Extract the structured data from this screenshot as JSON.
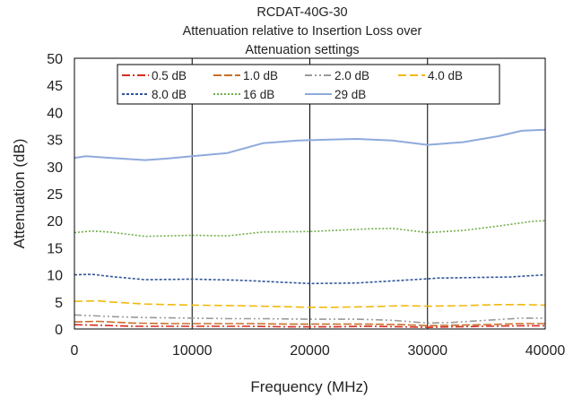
{
  "chart_data": {
    "type": "line",
    "title_lines": [
      "RCDAT-40G-30",
      "Attenuation relative to Insertion Loss over",
      "Attenuation settings"
    ],
    "xlabel": "Frequency (MHz)",
    "ylabel": "Attenuation (dB)",
    "xlim": [
      0,
      40000
    ],
    "ylim": [
      0,
      50
    ],
    "x_ticks": [
      0,
      10000,
      20000,
      30000,
      40000
    ],
    "y_ticks": [
      0,
      5,
      10,
      15,
      20,
      25,
      30,
      35,
      40,
      45,
      50
    ],
    "grid": "vertical",
    "legend_position": "top",
    "series": [
      {
        "name": "0.5 dB",
        "color": "#d62d20",
        "dash": "9,3,2,3",
        "points": [
          [
            0,
            0.8
          ],
          [
            2000,
            0.7
          ],
          [
            5000,
            0.5
          ],
          [
            8000,
            0.5
          ],
          [
            10000,
            0.5
          ],
          [
            12000,
            0.5
          ],
          [
            15000,
            0.5
          ],
          [
            18000,
            0.4
          ],
          [
            20000,
            0.4
          ],
          [
            22000,
            0.4
          ],
          [
            25000,
            0.5
          ],
          [
            28000,
            0.4
          ],
          [
            30000,
            0.3
          ],
          [
            32000,
            0.4
          ],
          [
            35000,
            0.5
          ],
          [
            38000,
            0.6
          ],
          [
            40000,
            0.6
          ]
        ]
      },
      {
        "name": "1.0 dB",
        "color": "#c8702a",
        "dash": "9,3",
        "points": [
          [
            0,
            1.3
          ],
          [
            2000,
            1.4
          ],
          [
            5000,
            1.1
          ],
          [
            8000,
            1.0
          ],
          [
            10000,
            1.0
          ],
          [
            12000,
            1.0
          ],
          [
            15000,
            1.0
          ],
          [
            18000,
            0.9
          ],
          [
            20000,
            0.9
          ],
          [
            22000,
            0.9
          ],
          [
            25000,
            0.9
          ],
          [
            28000,
            0.8
          ],
          [
            30000,
            0.6
          ],
          [
            32000,
            0.7
          ],
          [
            35000,
            0.8
          ],
          [
            38000,
            1.0
          ],
          [
            40000,
            1.0
          ]
        ]
      },
      {
        "name": "2.0 dB",
        "color": "#9a9a9a",
        "dash": "8,3,2,3,2,3",
        "points": [
          [
            0,
            2.6
          ],
          [
            1000,
            2.5
          ],
          [
            3000,
            2.3
          ],
          [
            6000,
            2.1
          ],
          [
            10000,
            2.0
          ],
          [
            13000,
            1.9
          ],
          [
            16000,
            1.9
          ],
          [
            20000,
            1.8
          ],
          [
            24000,
            1.8
          ],
          [
            27000,
            1.6
          ],
          [
            30000,
            1.1
          ],
          [
            32000,
            1.2
          ],
          [
            35000,
            1.6
          ],
          [
            38000,
            2.0
          ],
          [
            40000,
            2.0
          ]
        ]
      },
      {
        "name": "4.0 dB",
        "color": "#f2b90c",
        "dash": "9,4",
        "points": [
          [
            0,
            5.1
          ],
          [
            2000,
            5.2
          ],
          [
            3000,
            5.0
          ],
          [
            6000,
            4.6
          ],
          [
            10000,
            4.4
          ],
          [
            14000,
            4.3
          ],
          [
            18000,
            4.1
          ],
          [
            20000,
            4.0
          ],
          [
            22000,
            4.0
          ],
          [
            25000,
            4.1
          ],
          [
            28000,
            4.3
          ],
          [
            30000,
            4.2
          ],
          [
            33000,
            4.3
          ],
          [
            36000,
            4.5
          ],
          [
            38000,
            4.5
          ],
          [
            40000,
            4.4
          ]
        ]
      },
      {
        "name": "8.0 dB",
        "color": "#2f5597",
        "dash": "3,2",
        "points": [
          [
            0,
            10.0
          ],
          [
            1500,
            10.1
          ],
          [
            3000,
            9.7
          ],
          [
            6000,
            9.1
          ],
          [
            10000,
            9.2
          ],
          [
            14000,
            9.0
          ],
          [
            18000,
            8.6
          ],
          [
            20000,
            8.4
          ],
          [
            24000,
            8.5
          ],
          [
            28000,
            9.0
          ],
          [
            31000,
            9.4
          ],
          [
            34000,
            9.5
          ],
          [
            37000,
            9.6
          ],
          [
            40000,
            10.0
          ]
        ]
      },
      {
        "name": "16 dB",
        "color": "#70ad47",
        "dash": "2,2",
        "points": [
          [
            0,
            17.8
          ],
          [
            1500,
            18.1
          ],
          [
            3000,
            17.9
          ],
          [
            6000,
            17.1
          ],
          [
            10000,
            17.3
          ],
          [
            13000,
            17.2
          ],
          [
            16000,
            17.9
          ],
          [
            20000,
            18.0
          ],
          [
            25000,
            18.5
          ],
          [
            27000,
            18.6
          ],
          [
            30000,
            17.8
          ],
          [
            33000,
            18.2
          ],
          [
            36000,
            19.0
          ],
          [
            39000,
            19.9
          ],
          [
            40000,
            20.0
          ]
        ]
      },
      {
        "name": "29 dB",
        "color": "#8faadc",
        "dash": "",
        "points": [
          [
            0,
            31.6
          ],
          [
            1000,
            31.9
          ],
          [
            3000,
            31.6
          ],
          [
            6000,
            31.2
          ],
          [
            8000,
            31.5
          ],
          [
            10000,
            31.9
          ],
          [
            13000,
            32.5
          ],
          [
            16000,
            34.3
          ],
          [
            19000,
            34.8
          ],
          [
            22000,
            35.0
          ],
          [
            24000,
            35.1
          ],
          [
            27000,
            34.8
          ],
          [
            30000,
            34.0
          ],
          [
            33000,
            34.5
          ],
          [
            36000,
            35.6
          ],
          [
            38000,
            36.6
          ],
          [
            40000,
            36.8
          ]
        ]
      }
    ]
  }
}
